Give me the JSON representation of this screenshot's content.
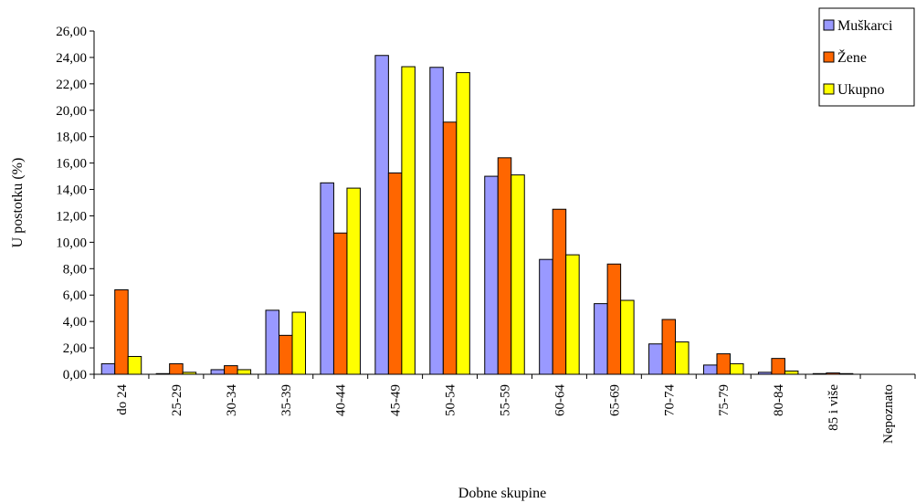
{
  "chart_data": {
    "type": "bar",
    "xlabel": "Dobne skupine",
    "ylabel": "U postotku (%)",
    "ylim": [
      0,
      26
    ],
    "ytick_step": 2,
    "ytick_labels": [
      "0,00",
      "2,00",
      "4,00",
      "6,00",
      "8,00",
      "10,00",
      "12,00",
      "14,00",
      "16,00",
      "18,00",
      "20,00",
      "22,00",
      "24,00",
      "26,00"
    ],
    "grid": false,
    "legend_position": "top-right",
    "categories": [
      "do 24",
      "25-29",
      "30-34",
      "35-39",
      "40-44",
      "45-49",
      "50-54",
      "55-59",
      "60-64",
      "65-69",
      "70-74",
      "75-79",
      "80-84",
      "85 i više",
      "Nepoznato"
    ],
    "series": [
      {
        "name": "Muškarci",
        "color": "#9999ff",
        "values": [
          0.8,
          0.05,
          0.35,
          4.85,
          14.5,
          24.15,
          23.25,
          15.0,
          8.7,
          5.35,
          2.3,
          0.7,
          0.15,
          0.05,
          0
        ]
      },
      {
        "name": "Žene",
        "color": "#ff6600",
        "values": [
          6.4,
          0.8,
          0.65,
          2.95,
          10.7,
          15.25,
          19.1,
          16.4,
          12.5,
          8.35,
          4.15,
          1.55,
          1.2,
          0.1,
          0
        ]
      },
      {
        "name": "Ukupno",
        "color": "#ffff00",
        "values": [
          1.35,
          0.15,
          0.35,
          4.7,
          14.1,
          23.3,
          22.85,
          15.1,
          9.05,
          5.6,
          2.45,
          0.8,
          0.25,
          0.05,
          0
        ]
      }
    ]
  }
}
